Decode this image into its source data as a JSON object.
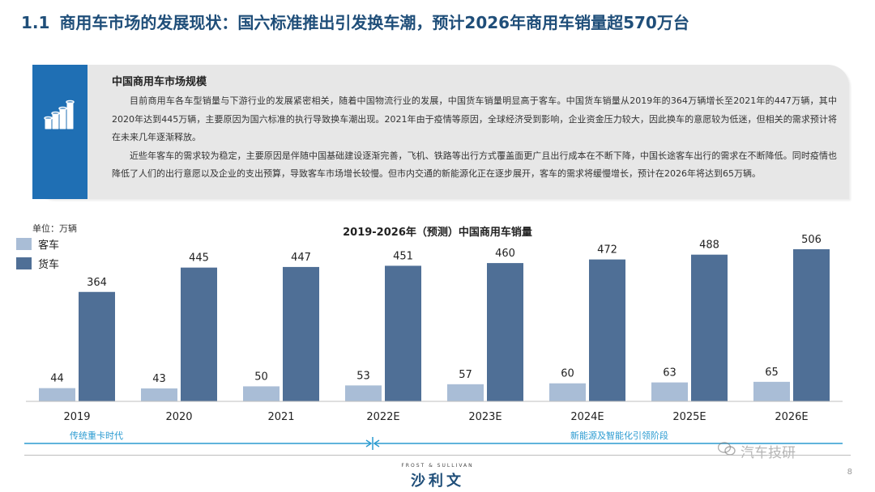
{
  "header": {
    "section_number": "1.1",
    "title": "商用车市场的发展现状：国六标准推出引发换车潮，预计2026年商用车销量超570万台"
  },
  "card": {
    "icon": "bar-chart-growth-icon",
    "title": "中国商用车市场规模",
    "paragraphs": [
      "目前商用车各车型销量与下游行业的发展紧密相关，随着中国物流行业的发展，中国货车销量明显高于客车。中国货车销量从2019年的364万辆增长至2021年的447万辆，其中2020年达到445万辆，主要原因为国六标准的执行导致换车潮出现。2021年由于疫情等原因，全球经济受到影响，企业资金压力较大，因此换车的意愿较为低迷，但相关的需求预计将在未来几年逐渐释放。",
      "近些年客车的需求较为稳定，主要原因是伴随中国基础建设逐渐完善，飞机、铁路等出行方式覆盖面更广且出行成本在不断下降，中国长途客车出行的需求在不断降低。同时疫情也降低了人们的出行意愿以及企业的支出预算，导致客车市场增长较慢。但市内交通的新能源化正在逐步展开，客车的需求将缓慢增长，预计在2026年将达到65万辆。"
    ],
    "accent_color": "#1f6fb4"
  },
  "chart_data": {
    "type": "bar",
    "title": "2019-2026年（预测）中国商用车销量",
    "unit_label": "单位：万辆",
    "categories": [
      "2019",
      "2020",
      "2021",
      "2022E",
      "2023E",
      "2024E",
      "2025E",
      "2026E"
    ],
    "series": [
      {
        "name": "客车",
        "values": [
          44,
          43,
          50,
          53,
          57,
          60,
          63,
          65
        ],
        "color": "#a9bdd6"
      },
      {
        "name": "货车",
        "values": [
          364,
          445,
          447,
          451,
          460,
          472,
          488,
          506
        ],
        "color": "#4f6f96"
      }
    ],
    "ylim": [
      0,
      506
    ],
    "grid": false,
    "legend": "top-left",
    "data_labels": true
  },
  "timeline": {
    "phases": [
      {
        "label": "传统重卡时代"
      },
      {
        "label": "新能源及智能化引领阶段"
      }
    ],
    "color": "#2b9bd1"
  },
  "footer": {
    "brand_en": "FROST & SULLIVAN",
    "brand_cn": "沙利文",
    "page_number": "8",
    "watermark": "汽车技研"
  }
}
